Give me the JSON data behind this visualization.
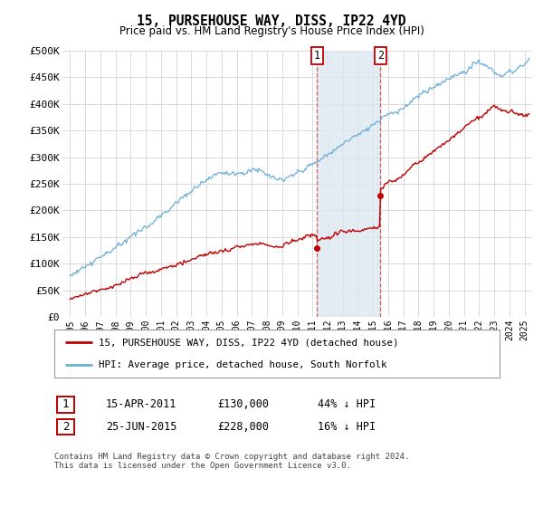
{
  "title": "15, PURSEHOUSE WAY, DISS, IP22 4YD",
  "subtitle": "Price paid vs. HM Land Registry's House Price Index (HPI)",
  "ylabel_ticks": [
    "£0",
    "£50K",
    "£100K",
    "£150K",
    "£200K",
    "£250K",
    "£300K",
    "£350K",
    "£400K",
    "£450K",
    "£500K"
  ],
  "ytick_values": [
    0,
    50000,
    100000,
    150000,
    200000,
    250000,
    300000,
    350000,
    400000,
    450000,
    500000
  ],
  "ylim": [
    0,
    500000
  ],
  "xlim_start": 1994.5,
  "xlim_end": 2025.5,
  "xtick_years": [
    1995,
    1996,
    1997,
    1998,
    1999,
    2000,
    2001,
    2002,
    2003,
    2004,
    2005,
    2006,
    2007,
    2008,
    2009,
    2010,
    2011,
    2012,
    2013,
    2014,
    2015,
    2016,
    2017,
    2018,
    2019,
    2020,
    2021,
    2022,
    2023,
    2024,
    2025
  ],
  "hpi_color": "#6baed6",
  "price_color": "#c00000",
  "event1_x": 2011.29,
  "event2_x": 2015.48,
  "event1_price": 130000,
  "event2_price": 228000,
  "event1_label": "1",
  "event2_label": "2",
  "event_region_color": "#dce6f1",
  "vline_color": "#d06060",
  "legend_label_red": "15, PURSEHOUSE WAY, DISS, IP22 4YD (detached house)",
  "legend_label_blue": "HPI: Average price, detached house, South Norfolk",
  "table_row1": [
    "1",
    "15-APR-2011",
    "£130,000",
    "44% ↓ HPI"
  ],
  "table_row2": [
    "2",
    "25-JUN-2015",
    "£228,000",
    "16% ↓ HPI"
  ],
  "footer": "Contains HM Land Registry data © Crown copyright and database right 2024.\nThis data is licensed under the Open Government Licence v3.0.",
  "background_color": "#ffffff",
  "grid_color": "#cccccc"
}
